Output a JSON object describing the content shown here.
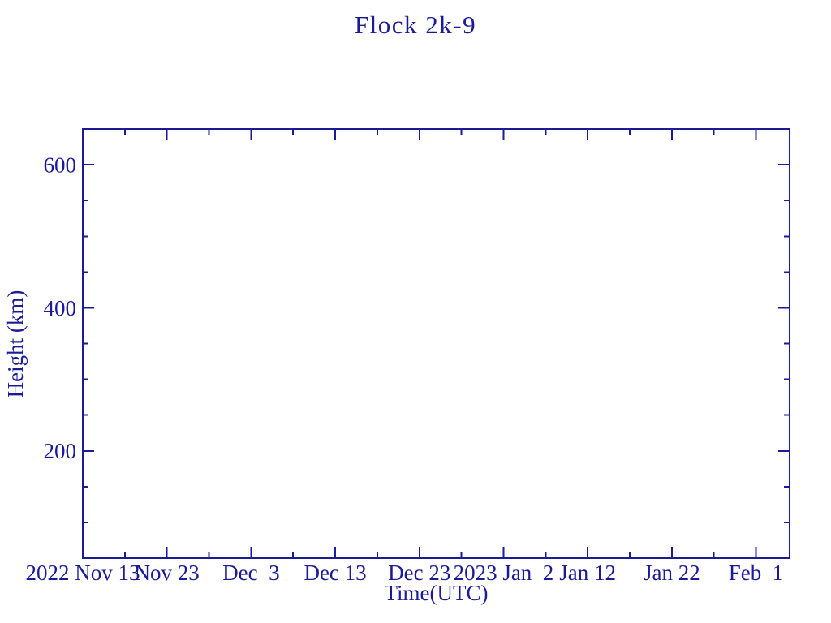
{
  "chart_data": {
    "type": "line",
    "title": "Flock 2k-9",
    "xlabel": "Time(UTC)",
    "ylabel": "Height (km)",
    "accent_color": "#1b1b97",
    "background_color": "#ffffff",
    "grid": false,
    "legend": null,
    "series": [],
    "x_axis": {
      "kind": "date",
      "start_label": "2022 Nov 13",
      "end_label": "2023 Feb 5",
      "span_days": 84,
      "major_tick_days": [
        0,
        10,
        20,
        30,
        40,
        50,
        60,
        70,
        80
      ],
      "major_tick_labels": [
        "2022 Nov 13",
        "Nov 23",
        "Dec  3",
        "Dec 13",
        "Dec 23",
        "2023 Jan  2",
        "Jan 12",
        "Jan 22",
        "Feb  1"
      ],
      "minor_tick_days": [
        5,
        15,
        25,
        35,
        45,
        55,
        65,
        75
      ]
    },
    "y_axis": {
      "min": 50,
      "max": 650,
      "major_ticks": [
        200,
        400,
        600
      ],
      "major_tick_labels": [
        "200",
        "400",
        "600"
      ],
      "minor_ticks": [
        100,
        150,
        250,
        300,
        350,
        450,
        500,
        550
      ]
    }
  }
}
